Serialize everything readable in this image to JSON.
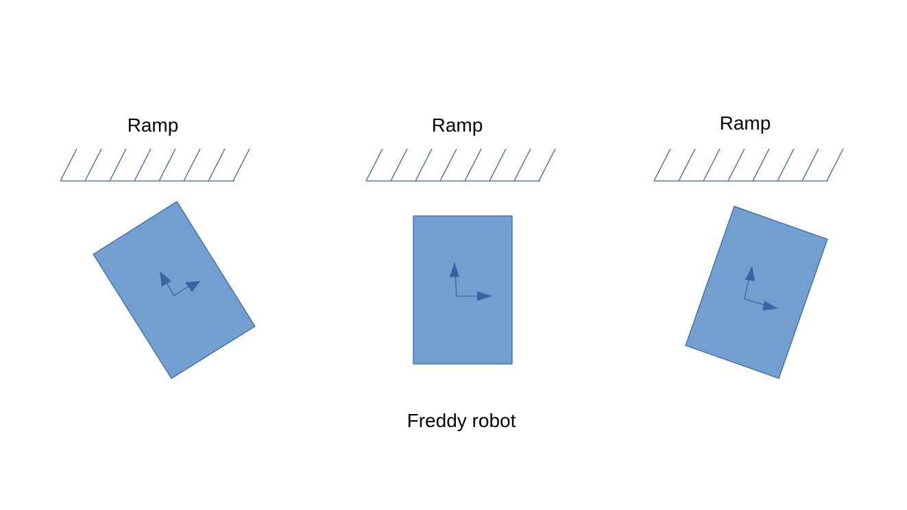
{
  "ramps": [
    {
      "label": "Ramp"
    },
    {
      "label": "Ramp"
    },
    {
      "label": "Ramp"
    }
  ],
  "robots": [
    {
      "tilt_deg": -32
    },
    {
      "tilt_deg": 0
    },
    {
      "tilt_deg": 20
    }
  ],
  "caption": "Freddy robot",
  "colors": {
    "robot_fill": "#729fcf",
    "robot_stroke": "#3465a4",
    "ramp_stroke": "#3a64a8",
    "text": "#000000"
  }
}
